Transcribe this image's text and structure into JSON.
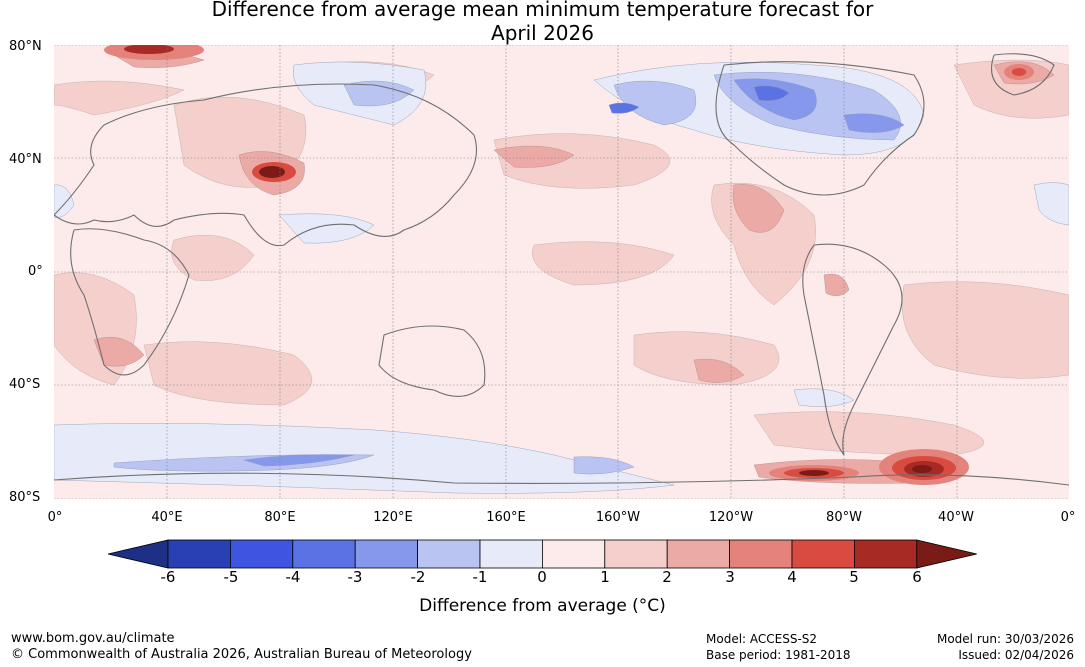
{
  "title_line1": "Difference from average mean minimum temperature forecast for",
  "title_line2": "April 2026",
  "lat_labels": [
    "80°N",
    "40°N",
    "0°",
    "40°S",
    "80°S"
  ],
  "lon_labels": [
    "0°",
    "40°E",
    "80°E",
    "120°E",
    "160°E",
    "160°W",
    "120°W",
    "80°W",
    "40°W",
    "0°"
  ],
  "colorbar": {
    "title": "Difference from average (°C)",
    "ticks": [
      "-6",
      "-5",
      "-4",
      "-3",
      "-2",
      "-1",
      "0",
      "1",
      "2",
      "3",
      "4",
      "5",
      "6"
    ],
    "colors": [
      "#1e2f86",
      "#2840b4",
      "#3d55e0",
      "#5b72e4",
      "#8698ec",
      "#bac4f2",
      "#e6eaf9",
      "#fcebea",
      "#f4cfcc",
      "#ebaaa6",
      "#e4837c",
      "#d94b40",
      "#a82a25",
      "#7a1b17"
    ]
  },
  "footer": {
    "website": "www.bom.gov.au/climate",
    "copyright": "© Commonwealth of Australia 2026, Australian Bureau of Meteorology",
    "model": "Model: ACCESS-S2",
    "base_period": "Base period: 1981-2018",
    "model_run": "Model run: 30/03/2026",
    "issued": "Issued: 02/04/2026"
  }
}
